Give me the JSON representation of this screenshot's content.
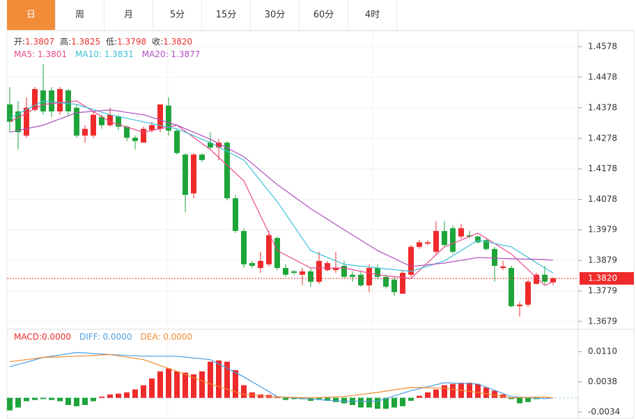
{
  "tabs": [
    "日",
    "周",
    "月",
    "5分",
    "15分",
    "30分",
    "60分",
    "4时"
  ],
  "chart_data": [
    {
      "type": "candlestick",
      "readout": [
        {
          "label": "开:",
          "value": "1.3807"
        },
        {
          "label": "高:",
          "value": "1.3825"
        },
        {
          "label": "低:",
          "value": "1.3798"
        },
        {
          "label": "收:",
          "value": "1.3820"
        }
      ],
      "up_color": "#ee2a2a",
      "down_color": "#1ea53a",
      "open": [
        1.4389,
        1.4366,
        1.4287,
        1.4371,
        1.4435,
        1.4435,
        1.4366,
        1.4435,
        1.4378,
        1.4287,
        1.4287,
        1.4348,
        1.4321,
        1.435,
        1.4316,
        1.428,
        1.4264,
        1.4305,
        1.4309,
        1.4385,
        1.4303,
        1.4225,
        1.4098,
        1.4225,
        1.4264,
        1.4248,
        1.4264,
        1.4082,
        1.3975,
        1.387,
        1.3854,
        1.3866,
        1.3952,
        1.3854,
        1.3843,
        1.3832,
        1.3843,
        1.3809,
        1.3847,
        1.3847,
        1.3861,
        1.3832,
        1.3832,
        1.3797,
        1.3854,
        1.3825,
        1.3816,
        1.377,
        1.3832,
        1.3923,
        1.3934,
        1.3907,
        1.3975,
        1.3984,
        1.3957,
        1.3961,
        1.3957,
        1.3945,
        1.3916,
        1.3854,
        1.3854,
        1.3729,
        1.3734,
        1.3802,
        1.3832,
        1.3807
      ],
      "high": [
        1.4446,
        1.44,
        1.4412,
        1.4446,
        1.4521,
        1.4446,
        1.4446,
        1.4439,
        1.4389,
        1.4321,
        1.4366,
        1.4355,
        1.4378,
        1.4355,
        1.4321,
        1.4287,
        1.4316,
        1.4332,
        1.4389,
        1.4412,
        1.4309,
        1.423,
        1.423,
        1.423,
        1.4298,
        1.4275,
        1.4269,
        1.4093,
        1.3984,
        1.3877,
        1.3907,
        1.3975,
        1.3957,
        1.3866,
        1.3847,
        1.3854,
        1.3854,
        1.3907,
        1.3877,
        1.3907,
        1.3877,
        1.3843,
        1.3843,
        1.3866,
        1.3866,
        1.3832,
        1.3825,
        1.3847,
        1.3929,
        1.3945,
        1.3945,
        1.4007,
        1.4007,
        1.3993,
        1.3998,
        1.3975,
        1.3961,
        1.3952,
        1.3923,
        1.3877,
        1.3861,
        1.3743,
        1.3816,
        1.3838,
        1.3861,
        1.3825
      ],
      "low": [
        1.4298,
        1.4241,
        1.428,
        1.4366,
        1.4355,
        1.4348,
        1.4355,
        1.435,
        1.428,
        1.4264,
        1.428,
        1.4309,
        1.4316,
        1.4305,
        1.4269,
        1.4241,
        1.4264,
        1.4298,
        1.4298,
        1.4287,
        1.4225,
        1.4036,
        1.4082,
        1.42,
        1.4241,
        1.4207,
        1.4075,
        1.3968,
        1.3854,
        1.3854,
        1.3838,
        1.3859,
        1.3847,
        1.3825,
        1.3832,
        1.3797,
        1.3793,
        1.3802,
        1.3843,
        1.3838,
        1.382,
        1.3809,
        1.3793,
        1.3775,
        1.3816,
        1.3787,
        1.3763,
        1.377,
        1.3825,
        1.3916,
        1.3929,
        1.39,
        1.3923,
        1.39,
        1.395,
        1.3952,
        1.3934,
        1.3911,
        1.3809,
        1.3847,
        1.3725,
        1.3695,
        1.3727,
        1.38,
        1.38,
        1.3798
      ],
      "close": [
        1.4332,
        1.4298,
        1.4378,
        1.4439,
        1.4366,
        1.4366,
        1.4439,
        1.4366,
        1.4287,
        1.4309,
        1.4355,
        1.4321,
        1.4355,
        1.4316,
        1.428,
        1.4269,
        1.4309,
        1.4321,
        1.4389,
        1.4303,
        1.423,
        1.4093,
        1.4225,
        1.4207,
        1.4248,
        1.4264,
        1.4082,
        1.3975,
        1.3866,
        1.3861,
        1.3877,
        1.3961,
        1.3854,
        1.3832,
        1.3838,
        1.3843,
        1.3809,
        1.3877,
        1.387,
        1.3854,
        1.3825,
        1.3825,
        1.3797,
        1.3854,
        1.3825,
        1.3793,
        1.3775,
        1.3838,
        1.3923,
        1.3938,
        1.3938,
        1.3975,
        1.3929,
        1.3907,
        1.3984,
        1.3957,
        1.3938,
        1.3916,
        1.3861,
        1.3859,
        1.3729,
        1.3734,
        1.3809,
        1.3832,
        1.3809,
        1.382
      ],
      "series": [
        {
          "legend": "MA5: 1.3801",
          "color": "#e8498a",
          "x": [
            0,
            4,
            8,
            12,
            16,
            20,
            24,
            28,
            32,
            36,
            40,
            44,
            48,
            52,
            56,
            60,
            64,
            65
          ],
          "values": [
            1.4332,
            1.4389,
            1.44,
            1.4332,
            1.4298,
            1.4321,
            1.4241,
            1.4139,
            1.3911,
            1.3854,
            1.3854,
            1.3832,
            1.382,
            1.3923,
            1.3968,
            1.39,
            1.3797,
            1.3809
          ]
        },
        {
          "legend": "MA10: 1.3831",
          "color": "#3cc0d8",
          "x": [
            0,
            4,
            8,
            12,
            16,
            20,
            24,
            28,
            32,
            36,
            40,
            44,
            48,
            52,
            56,
            60,
            64,
            65
          ],
          "values": [
            1.4344,
            1.44,
            1.4389,
            1.4355,
            1.4332,
            1.4309,
            1.4264,
            1.4207,
            1.4071,
            1.3911,
            1.3866,
            1.3854,
            1.3843,
            1.3877,
            1.3945,
            1.3923,
            1.3854,
            1.3838
          ]
        },
        {
          "legend": "MA20: 1.3877",
          "color": "#b04fc0",
          "x": [
            0,
            4,
            8,
            12,
            16,
            20,
            24,
            28,
            32,
            36,
            40,
            44,
            48,
            52,
            56,
            60,
            64,
            65
          ],
          "values": [
            1.4298,
            1.4321,
            1.4362,
            1.4371,
            1.4355,
            1.4321,
            1.4275,
            1.4218,
            1.4127,
            1.4048,
            1.3979,
            1.3911,
            1.3859,
            1.387,
            1.3888,
            1.3884,
            1.3882,
            1.3879
          ]
        }
      ],
      "last_price": {
        "value": 1.382,
        "label": "1.3820"
      },
      "last_price_color": "#ee2a2a",
      "ylim": [
        1.3656,
        1.4628
      ],
      "yticks": [
        1.4578,
        1.4478,
        1.4378,
        1.4278,
        1.4178,
        1.4078,
        1.3979,
        1.3879,
        1.3779,
        1.3679
      ],
      "grid": true
    },
    {
      "type": "macd",
      "legend": [
        {
          "text": "MACD:0.0000",
          "color": "#ee2a2a"
        },
        {
          "text": "DIFF: 0.0000",
          "color": "#4a9de0"
        },
        {
          "text": "DEA: 0.0000",
          "color": "#f08a30"
        }
      ],
      "up_color": "#ee2a2a",
      "down_color": "#1ea53a",
      "values": [
        -0.003,
        -0.0023,
        -0.0008,
        -0.0005,
        -0.0003,
        -0.0005,
        -0.0008,
        -0.0017,
        -0.002,
        -0.0017,
        -0.0008,
        0.0003,
        0.0008,
        0.001,
        0.0013,
        0.002,
        0.003,
        0.0046,
        0.0063,
        0.007,
        0.0063,
        0.006,
        0.0056,
        0.0063,
        0.0086,
        0.0089,
        0.0086,
        0.0066,
        0.003,
        0.0013,
        0.0008,
        0.0007,
        0.0003,
        -0.0005,
        -0.0003,
        -0.0003,
        -0.0007,
        -0.0003,
        -0.0007,
        -0.001,
        -0.0013,
        -0.0017,
        -0.0023,
        -0.0023,
        -0.0026,
        -0.0026,
        -0.0023,
        -0.002,
        -0.0007,
        0.0005,
        0.0013,
        0.002,
        0.003,
        0.0033,
        0.0036,
        0.0036,
        0.0033,
        0.0025,
        0.0017,
        0.0008,
        -0.0003,
        -0.0013,
        -0.001,
        -0.0003,
        0,
        0
      ],
      "series": [
        {
          "color": "#4a9de0",
          "x": [
            0,
            4,
            8,
            12,
            16,
            20,
            24,
            28,
            32,
            36,
            40,
            44,
            48,
            52,
            56,
            60,
            64,
            65
          ],
          "values": [
            0.0074,
            0.0096,
            0.0108,
            0.0103,
            0.0099,
            0.0099,
            0.0091,
            0.005,
            0.0003,
            -0.0003,
            -0.0008,
            -0.0008,
            0.0017,
            0.0036,
            0.0033,
            0.0003,
            -0.0002,
            0
          ]
        },
        {
          "color": "#f08a30",
          "x": [
            0,
            4,
            8,
            12,
            16,
            20,
            24,
            28,
            32,
            36,
            40,
            44,
            48,
            52,
            56,
            60,
            64,
            65
          ],
          "values": [
            0.0086,
            0.0096,
            0.0099,
            0.0103,
            0.0091,
            0.0063,
            0.0033,
            0.0008,
            0.0002,
            0,
            0.0003,
            0.0013,
            0.0025,
            0.0023,
            0.0013,
            0,
            0.0002,
            0
          ]
        }
      ],
      "ylim": [
        -0.0047,
        0.016
      ],
      "yticks": [
        {
          "value": 0.011,
          "label": "0.0110"
        },
        0.0038,
        -0.0034
      ],
      "grid": false
    }
  ]
}
